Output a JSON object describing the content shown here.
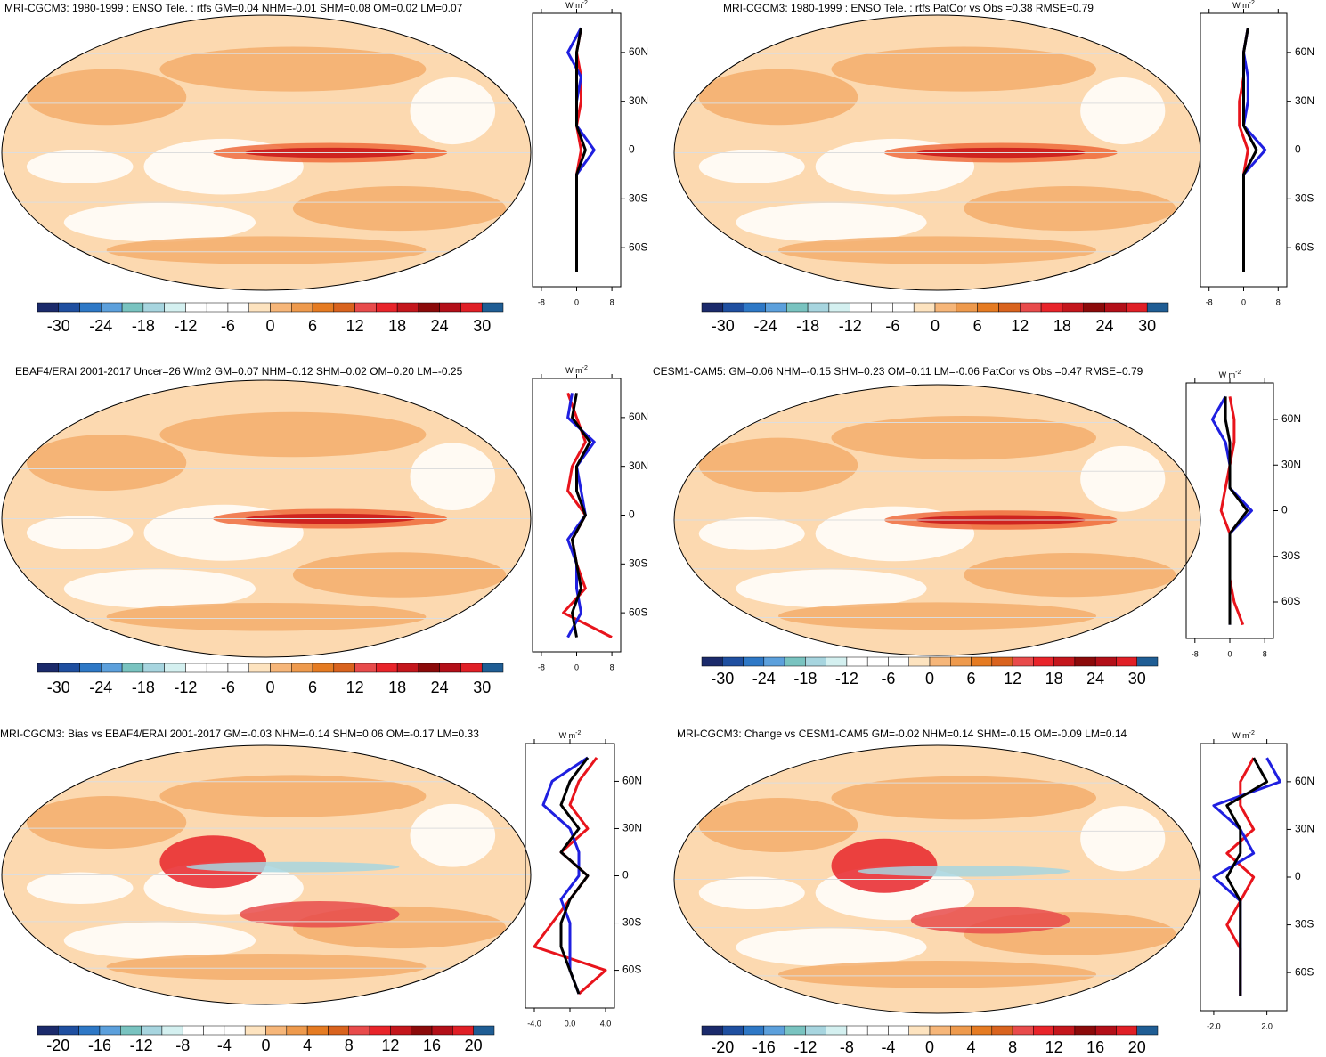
{
  "zonal_lat": [
    75,
    60,
    45,
    30,
    15,
    0,
    -15,
    -30,
    -45,
    -60,
    -75
  ],
  "palette": [
    "#1b2a6b",
    "#1f4fa0",
    "#2e78c6",
    "#5ca0dc",
    "#79c3c0",
    "#a7d5df",
    "#d4f0f0",
    "#ffffff",
    "#ffffff",
    "#ffffff",
    "#fde3bf",
    "#f6b679",
    "#ee9a4d",
    "#e57b22",
    "#d9631e",
    "#e84b4b",
    "#e8242a",
    "#c4161c",
    "#8b0a0a",
    "#b30f18",
    "#e01f26",
    "#1f5d94"
  ],
  "panels": [
    {
      "title": "MRI-CGCM3: 1980-1999 : ENSO Tele. : rtfs GM=0.04 NHM=-0.01 SHM=0.08 OM=0.02 LM=0.07",
      "colorbar_labels": [
        -30,
        -24,
        -18,
        -12,
        -6,
        0,
        6,
        12,
        18,
        24,
        30
      ],
      "unit": "W m",
      "unit_sup": "-2",
      "xlim": [
        -10,
        10
      ],
      "xticks": [
        -8,
        0,
        8
      ],
      "ylim": [
        -84,
        84
      ],
      "yticks": [
        {
          "value": 60,
          "label": "60N"
        },
        {
          "value": 30,
          "label": "30N"
        },
        0,
        {
          "value": -30,
          "label": "30S"
        },
        {
          "value": -60,
          "label": "60S"
        }
      ],
      "series": [
        {
          "color": "#e8141c",
          "values": [
            1,
            0,
            1,
            1,
            0,
            1,
            0,
            0,
            0,
            0,
            0
          ]
        },
        {
          "color": "#1f1fe0",
          "values": [
            1,
            -2,
            1,
            0,
            0,
            4,
            0,
            0,
            0,
            0,
            0
          ]
        },
        {
          "color": "#000000",
          "values": [
            1,
            0,
            0,
            0,
            0,
            2,
            0,
            0,
            0,
            0,
            0
          ]
        }
      ]
    },
    {
      "title": "MRI-CGCM3: 1980-1999 : ENSO Tele. : rtfs PatCor vs Obs =0.38 RMSE=0.79",
      "colorbar_labels": [
        -30,
        -24,
        -18,
        -12,
        -6,
        0,
        6,
        12,
        18,
        24,
        30
      ],
      "unit": "W m",
      "unit_sup": "-2",
      "xlim": [
        -10,
        10
      ],
      "xticks": [
        -8,
        0,
        8
      ],
      "ylim": [
        -84,
        84
      ],
      "yticks": [
        {
          "value": 60,
          "label": "60N"
        },
        {
          "value": 30,
          "label": "30N"
        },
        0,
        {
          "value": -30,
          "label": "30S"
        },
        {
          "value": -60,
          "label": "60S"
        }
      ],
      "series": [
        {
          "color": "#e8141c",
          "values": [
            1,
            0,
            0,
            -1,
            -1,
            1,
            0,
            0,
            0,
            0,
            0
          ]
        },
        {
          "color": "#1f1fe0",
          "values": [
            1,
            0,
            1,
            1,
            0,
            5,
            0,
            0,
            0,
            0,
            0
          ]
        },
        {
          "color": "#000000",
          "values": [
            1,
            0,
            0,
            0,
            0,
            3,
            0,
            0,
            0,
            0,
            0
          ]
        }
      ]
    },
    {
      "title": "EBAF4/ERAI 2001-2017 Uncer=26 W/m2 GM=0.07 NHM=0.12 SHM=0.02 OM=0.20 LM=-0.25",
      "colorbar_labels": [
        -30,
        -24,
        -18,
        -12,
        -6,
        0,
        6,
        12,
        18,
        24,
        30
      ],
      "unit": "W m",
      "unit_sup": "-2",
      "xlim": [
        -10,
        10
      ],
      "xticks": [
        -8,
        0,
        8
      ],
      "ylim": [
        -84,
        84
      ],
      "yticks": [
        {
          "value": 60,
          "label": "60N"
        },
        {
          "value": 30,
          "label": "30N"
        },
        0,
        {
          "value": -30,
          "label": "30S"
        },
        {
          "value": -60,
          "label": "60S"
        }
      ],
      "series": [
        {
          "color": "#e8141c",
          "values": [
            -2,
            0,
            2,
            -1,
            -2,
            2,
            -1,
            0,
            2,
            -3,
            8
          ]
        },
        {
          "color": "#1f1fe0",
          "values": [
            -1,
            -2,
            4,
            0,
            1,
            2,
            -2,
            0,
            0,
            1,
            -2
          ]
        },
        {
          "color": "#000000",
          "values": [
            0,
            -1,
            3,
            0,
            0,
            2,
            -1,
            0,
            1,
            -1,
            0
          ]
        }
      ]
    },
    {
      "title": "CESM1-CAM5: GM=0.06 NHM=-0.15 SHM=0.23 OM=0.11 LM=-0.06 PatCor vs Obs =0.47 RMSE=0.79",
      "colorbar_labels": [
        -30,
        -24,
        -18,
        -12,
        -6,
        0,
        6,
        12,
        18,
        24,
        30
      ],
      "unit": "W m",
      "unit_sup": "-2",
      "xlim": [
        -10,
        10
      ],
      "xticks": [
        -8,
        0,
        8
      ],
      "ylim": [
        -84,
        84
      ],
      "yticks": [
        {
          "value": 60,
          "label": "60N"
        },
        {
          "value": 30,
          "label": "30N"
        },
        0,
        {
          "value": -30,
          "label": "30S"
        },
        {
          "value": -60,
          "label": "60S"
        }
      ],
      "series": [
        {
          "color": "#e8141c",
          "values": [
            0,
            1,
            1,
            0,
            -1,
            -2,
            0,
            0,
            0,
            1,
            3
          ]
        },
        {
          "color": "#1f1fe0",
          "values": [
            -1,
            -4,
            -1,
            0,
            0,
            5,
            0,
            0,
            0,
            0,
            0
          ]
        },
        {
          "color": "#000000",
          "values": [
            -1,
            -1,
            0,
            0,
            0,
            4,
            0,
            0,
            0,
            0,
            0
          ]
        }
      ]
    },
    {
      "title": "MRI-CGCM3: Bias vs EBAF4/ERAI 2001-2017 GM=-0.03 NHM=-0.14 SHM=0.06 OM=-0.17 LM=0.33",
      "colorbar_labels": [
        -20,
        -16,
        -12,
        -8,
        -4,
        0,
        4,
        8,
        12,
        16,
        20
      ],
      "unit": "W m",
      "unit_sup": "-2",
      "xlim": [
        -5,
        5
      ],
      "xticks": [
        {
          "value": -4,
          "label": "-4.0"
        },
        {
          "value": 0,
          "label": "0.0"
        },
        {
          "value": 4,
          "label": "4.0"
        }
      ],
      "ylim": [
        -84,
        84
      ],
      "yticks": [
        {
          "value": 60,
          "label": "60N"
        },
        {
          "value": 30,
          "label": "30N"
        },
        0,
        {
          "value": -30,
          "label": "30S"
        },
        {
          "value": -60,
          "label": "60S"
        }
      ],
      "series": [
        {
          "color": "#e8141c",
          "values": [
            3,
            1,
            0,
            2,
            -1,
            2,
            0,
            -2,
            -4,
            4,
            1
          ]
        },
        {
          "color": "#1f1fe0",
          "values": [
            2,
            -2,
            -3,
            0,
            1,
            1,
            -1,
            0,
            0,
            0,
            1
          ]
        },
        {
          "color": "#000000",
          "values": [
            2,
            0,
            -1,
            1,
            -1,
            2,
            0,
            -1,
            -1,
            0,
            1
          ]
        }
      ]
    },
    {
      "title": "MRI-CGCM3: Change vs CESM1-CAM5 GM=-0.02 NHM=0.14 SHM=-0.15 OM=-0.09 LM=0.14",
      "colorbar_labels": [
        -20,
        -16,
        -12,
        -8,
        -4,
        0,
        4,
        8,
        12,
        16,
        20
      ],
      "unit": "W m",
      "unit_sup": "-2",
      "xlim": [
        -3,
        3.5
      ],
      "xticks": [
        {
          "value": -2,
          "label": "-2.0"
        },
        {
          "value": 2,
          "label": "2.0"
        }
      ],
      "ylim": [
        -84,
        84
      ],
      "yticks": [
        {
          "value": 60,
          "label": "60N"
        },
        {
          "value": 30,
          "label": "30N"
        },
        0,
        {
          "value": -30,
          "label": "30S"
        },
        {
          "value": -60,
          "label": "60S"
        }
      ],
      "series": [
        {
          "color": "#e8141c",
          "values": [
            1,
            0,
            0,
            1,
            -1,
            1,
            0,
            -1,
            0,
            0,
            0
          ]
        },
        {
          "color": "#1f1fe0",
          "values": [
            2,
            3,
            -2,
            0,
            1,
            -2,
            0,
            0,
            0,
            0,
            0
          ]
        },
        {
          "color": "#000000",
          "values": [
            1,
            2,
            -1,
            0,
            0,
            -1,
            0,
            0,
            0,
            0,
            0
          ]
        }
      ]
    }
  ]
}
